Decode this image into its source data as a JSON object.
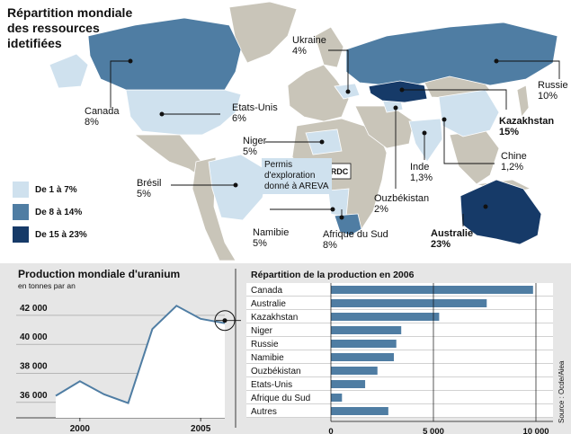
{
  "map": {
    "title": "Répartition mondiale des ressources idetifiées",
    "legend": [
      {
        "label": "De 1 à 7%",
        "color": "#cfe1ee"
      },
      {
        "label": "De 8 à 14%",
        "color": "#4f7da3"
      },
      {
        "label": "De 15 à 23%",
        "color": "#163a68"
      }
    ],
    "countries": [
      {
        "name": "Canada",
        "share": "8%"
      },
      {
        "name": "Etats-Unis",
        "share": "6%"
      },
      {
        "name": "Ukraine",
        "share": "4%"
      },
      {
        "name": "Russie",
        "share": "10%"
      },
      {
        "name": "Kazakhstan",
        "share": "15%"
      },
      {
        "name": "Niger",
        "share": "5%"
      },
      {
        "name": "Brésil",
        "share": "5%"
      },
      {
        "name": "Inde",
        "share": "1,3%"
      },
      {
        "name": "Chine",
        "share": "1,2%"
      },
      {
        "name": "Ouzbékistan",
        "share": "2%"
      },
      {
        "name": "Namibie",
        "share": "5%"
      },
      {
        "name": "Afrique du Sud",
        "share": "8%"
      },
      {
        "name": "Australie",
        "share": "23%"
      }
    ],
    "permit_note": "Permis d'exploration donné à AREVA",
    "rdc_label": "RDC"
  },
  "chart_data": [
    {
      "type": "line",
      "title": "Production mondiale d'uranium",
      "subtitle": "en tonnes par an",
      "x": [
        1999,
        2000,
        2001,
        2002,
        2003,
        2004,
        2005,
        2006
      ],
      "values": [
        35900,
        36900,
        36000,
        35400,
        40500,
        42100,
        41200,
        40900
      ],
      "xticks": [
        2000,
        2005
      ],
      "yticks": [
        36000,
        38000,
        40000,
        42000
      ],
      "ytick_labels": [
        "36 000",
        "38 000",
        "40 000",
        "42 000"
      ],
      "ylim": [
        35000,
        42800
      ]
    },
    {
      "type": "bar",
      "orientation": "horizontal",
      "title": "Répartition de la production en 2006",
      "categories": [
        "Canada",
        "Australie",
        "Kazakhstan",
        "Niger",
        "Russie",
        "Namibie",
        "Ouzbékistan",
        "Etats-Unis",
        "Afrique du Sud",
        "Autres"
      ],
      "values": [
        9860,
        7600,
        5280,
        3430,
        3190,
        3070,
        2270,
        1670,
        540,
        2800
      ],
      "xticks": [
        0,
        5000,
        10000
      ],
      "xtick_labels": [
        "0",
        "5 000",
        "10 000"
      ],
      "xlim": [
        0,
        10000
      ],
      "color": "#4f7da3"
    }
  ],
  "source": "Source : Ocde/Aiea"
}
